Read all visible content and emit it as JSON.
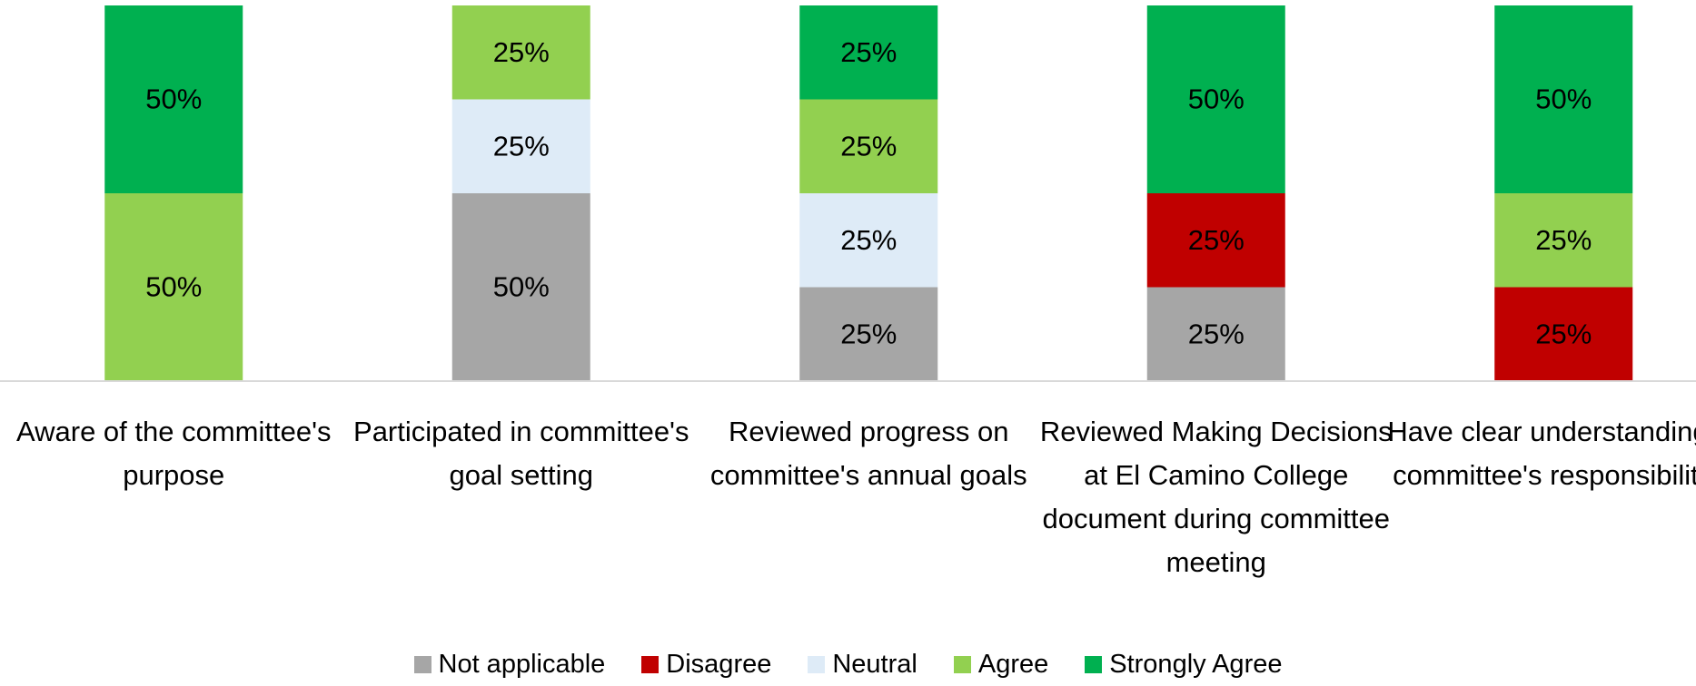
{
  "chart_data": {
    "type": "stacked_bar",
    "categories": [
      "Aware of the committee's purpose",
      "Participated in committee's goal setting",
      "Reviewed progress on committee's annual goals",
      "Reviewed Making Decisions at El Camino College document during committee meeting",
      "Have clear understanding of committee's responsibilities"
    ],
    "series": [
      {
        "name": "Not applicable",
        "color": "#a6a6a6",
        "values": [
          0,
          50,
          25,
          25,
          0
        ],
        "value_labels": [
          null,
          "50%",
          "25%",
          "25%",
          null
        ]
      },
      {
        "name": "Disagree",
        "color": "#c00000",
        "values": [
          0,
          0,
          0,
          25,
          25
        ],
        "value_labels": [
          null,
          null,
          null,
          "25%",
          "25%"
        ]
      },
      {
        "name": "Neutral",
        "color": "#deebf7",
        "values": [
          0,
          25,
          25,
          0,
          0
        ],
        "value_labels": [
          null,
          "25%",
          "25%",
          null,
          null
        ]
      },
      {
        "name": "Agree",
        "color": "#92d050",
        "values": [
          50,
          25,
          25,
          0,
          25
        ],
        "value_labels": [
          "50%",
          "25%",
          "25%",
          null,
          "25%"
        ]
      },
      {
        "name": "Strongly Agree",
        "color": "#00b050",
        "values": [
          50,
          0,
          25,
          50,
          50
        ],
        "value_labels": [
          "50%",
          null,
          "25%",
          "50%",
          "50%"
        ]
      }
    ],
    "ylim": [
      0,
      100
    ],
    "legend": "bottom"
  }
}
